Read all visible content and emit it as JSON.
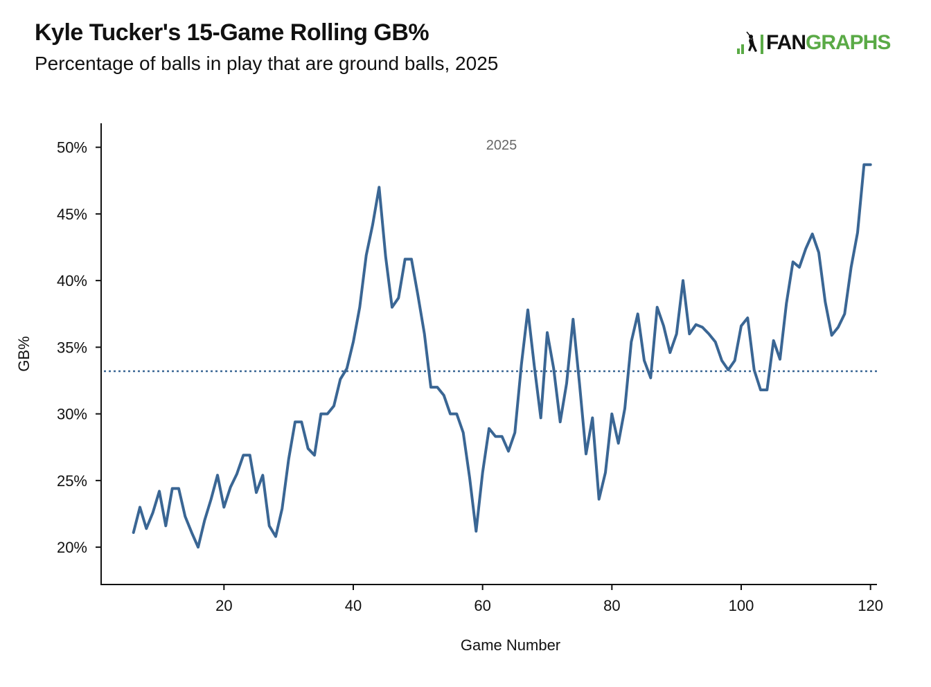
{
  "header": {
    "title": "Kyle Tucker's 15-Game Rolling GB%",
    "subtitle": "Percentage of balls in play that are ground balls, 2025"
  },
  "logo": {
    "text_dark": "FAN",
    "text_green": "GRAPHS",
    "icon": "fangraphs-batter-icon"
  },
  "colors": {
    "line": "#3a6694",
    "reference": "#3a6694",
    "brand_green": "#5aaa46"
  },
  "chart_data": {
    "type": "line",
    "title": "Kyle Tucker's 15-Game Rolling GB%",
    "subtitle": "Percentage of balls in play that are ground balls, 2025",
    "xlabel": "Game Number",
    "ylabel": "GB%",
    "xlim": [
      1,
      121
    ],
    "ylim": [
      17.2,
      51.8
    ],
    "x_ticks": [
      20,
      40,
      60,
      80,
      100,
      120
    ],
    "y_ticks": [
      20,
      25,
      30,
      35,
      40,
      45,
      50
    ],
    "y_tick_labels": [
      "20%",
      "25%",
      "30%",
      "35%",
      "40%",
      "45%",
      "50%"
    ],
    "annotation": "2025",
    "reference_line": {
      "y": 33.2,
      "style": "dotted"
    },
    "grid": false,
    "series": [
      {
        "x": [
          6,
          7,
          8,
          9,
          10,
          11,
          12,
          13,
          14,
          15,
          16,
          17,
          18,
          19,
          20,
          21,
          22,
          23,
          24,
          25,
          26,
          27,
          28,
          29,
          30,
          31,
          32,
          33,
          34,
          35,
          36,
          37,
          38,
          39,
          40,
          41,
          42,
          43,
          44,
          45,
          46,
          47,
          48,
          49,
          50,
          51,
          52,
          53,
          54,
          55,
          56,
          57,
          58,
          59,
          60,
          61,
          62,
          63,
          64,
          65,
          66,
          67,
          68,
          69,
          70,
          71,
          72,
          73,
          74,
          75,
          76,
          77,
          78,
          79,
          80,
          81,
          82,
          83,
          84,
          85,
          86,
          87,
          88,
          89,
          90,
          91,
          92,
          93,
          94,
          95,
          96,
          97,
          98,
          99,
          100,
          101,
          102,
          103,
          104,
          105,
          106,
          107,
          108,
          109,
          110,
          111,
          112,
          113,
          114,
          115,
          116,
          117,
          118,
          119,
          120
        ],
        "values": [
          21.1,
          23.0,
          21.4,
          22.6,
          24.2,
          21.6,
          24.4,
          24.4,
          22.3,
          21.1,
          20.0,
          22.0,
          23.6,
          25.4,
          23.0,
          24.5,
          25.5,
          26.9,
          26.9,
          24.1,
          25.4,
          21.6,
          20.8,
          22.9,
          26.6,
          29.4,
          29.4,
          27.4,
          26.9,
          30.0,
          30.0,
          30.6,
          32.6,
          33.4,
          35.4,
          38.0,
          41.9,
          44.2,
          47.0,
          41.8,
          38.0,
          38.7,
          41.6,
          41.6,
          38.9,
          36.0,
          32.0,
          32.0,
          31.4,
          30.0,
          30.0,
          28.6,
          25.2,
          21.2,
          25.6,
          28.9,
          28.3,
          28.3,
          27.2,
          28.6,
          33.7,
          37.8,
          33.6,
          29.7,
          36.1,
          33.4,
          29.4,
          32.3,
          37.1,
          32.2,
          27.0,
          29.7,
          23.6,
          25.6,
          30.0,
          27.8,
          30.4,
          35.4,
          37.5,
          34.0,
          32.7,
          38.0,
          36.6,
          34.6,
          36.0,
          40.0,
          36.0,
          36.7,
          36.5,
          36.0,
          35.4,
          34.0,
          33.3,
          34.0,
          36.6,
          37.2,
          33.3,
          31.8,
          31.8,
          35.5,
          34.1,
          38.3,
          41.4,
          41.0,
          42.4,
          43.5,
          42.1,
          38.4,
          35.9,
          36.5,
          37.5,
          41.0,
          43.6,
          48.7,
          48.7
        ]
      }
    ]
  }
}
